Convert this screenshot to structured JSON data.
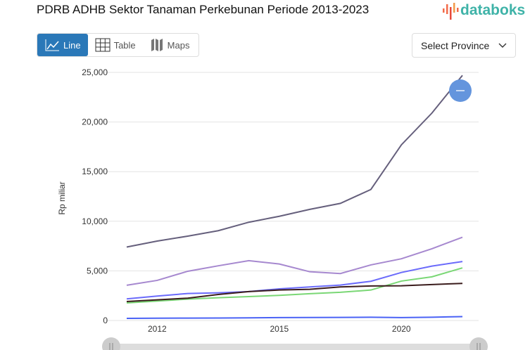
{
  "header": {
    "title": "PDRB ADHB Sektor Tanaman Perkebunan Periode 2013-2023",
    "logo": "databoks"
  },
  "tabs": [
    {
      "label": "Line",
      "icon": "line-chart-icon",
      "active": true
    },
    {
      "label": "Table",
      "icon": "table-icon"
    },
    {
      "label": "Maps",
      "icon": "map-icon"
    }
  ],
  "province_select": {
    "label": "Select Province",
    "icon": "chevron-down-icon"
  },
  "zoom_button": {
    "icon": "minus-icon",
    "color": "#6495dd"
  },
  "chart_data": {
    "type": "line",
    "title": "",
    "xlabel": "",
    "ylabel": "Rp miliar",
    "ylim": [
      0,
      25000
    ],
    "yticks": [
      "0",
      "5,000",
      "10,000",
      "15,000",
      "20,000",
      "25,000"
    ],
    "ytick_values": [
      0,
      5000,
      10000,
      15000,
      20000,
      25000
    ],
    "xticks": [
      {
        "index": 1,
        "label": "2012"
      },
      {
        "index": 5,
        "label": "2015"
      },
      {
        "index": 9,
        "label": "2020"
      }
    ],
    "grid": true,
    "legend": "none",
    "series": [
      {
        "color": "#655f7c",
        "values": [
          7400,
          8000,
          8500,
          9050,
          9900,
          10500,
          11200,
          11800,
          13200,
          17700,
          20900,
          24700
        ]
      },
      {
        "color": "#a688cf",
        "values": [
          3550,
          4040,
          4960,
          5510,
          6030,
          5690,
          4910,
          4730,
          5600,
          6220,
          7230,
          8390
        ]
      },
      {
        "color": "#6b6bfb",
        "values": [
          2180,
          2460,
          2720,
          2790,
          2910,
          3190,
          3380,
          3570,
          3950,
          4840,
          5480,
          5940
        ]
      },
      {
        "color": "#7ad775",
        "values": [
          1770,
          1960,
          2150,
          2290,
          2410,
          2530,
          2700,
          2840,
          3070,
          3970,
          4400,
          5300
        ]
      },
      {
        "color": "#3a1c1c",
        "values": [
          1910,
          2080,
          2250,
          2620,
          2910,
          3070,
          3140,
          3380,
          3480,
          3500,
          3620,
          3740
        ]
      },
      {
        "color": "#4a62f5",
        "values": [
          210,
          230,
          240,
          250,
          270,
          290,
          300,
          310,
          330,
          290,
          330,
          390
        ]
      }
    ]
  }
}
